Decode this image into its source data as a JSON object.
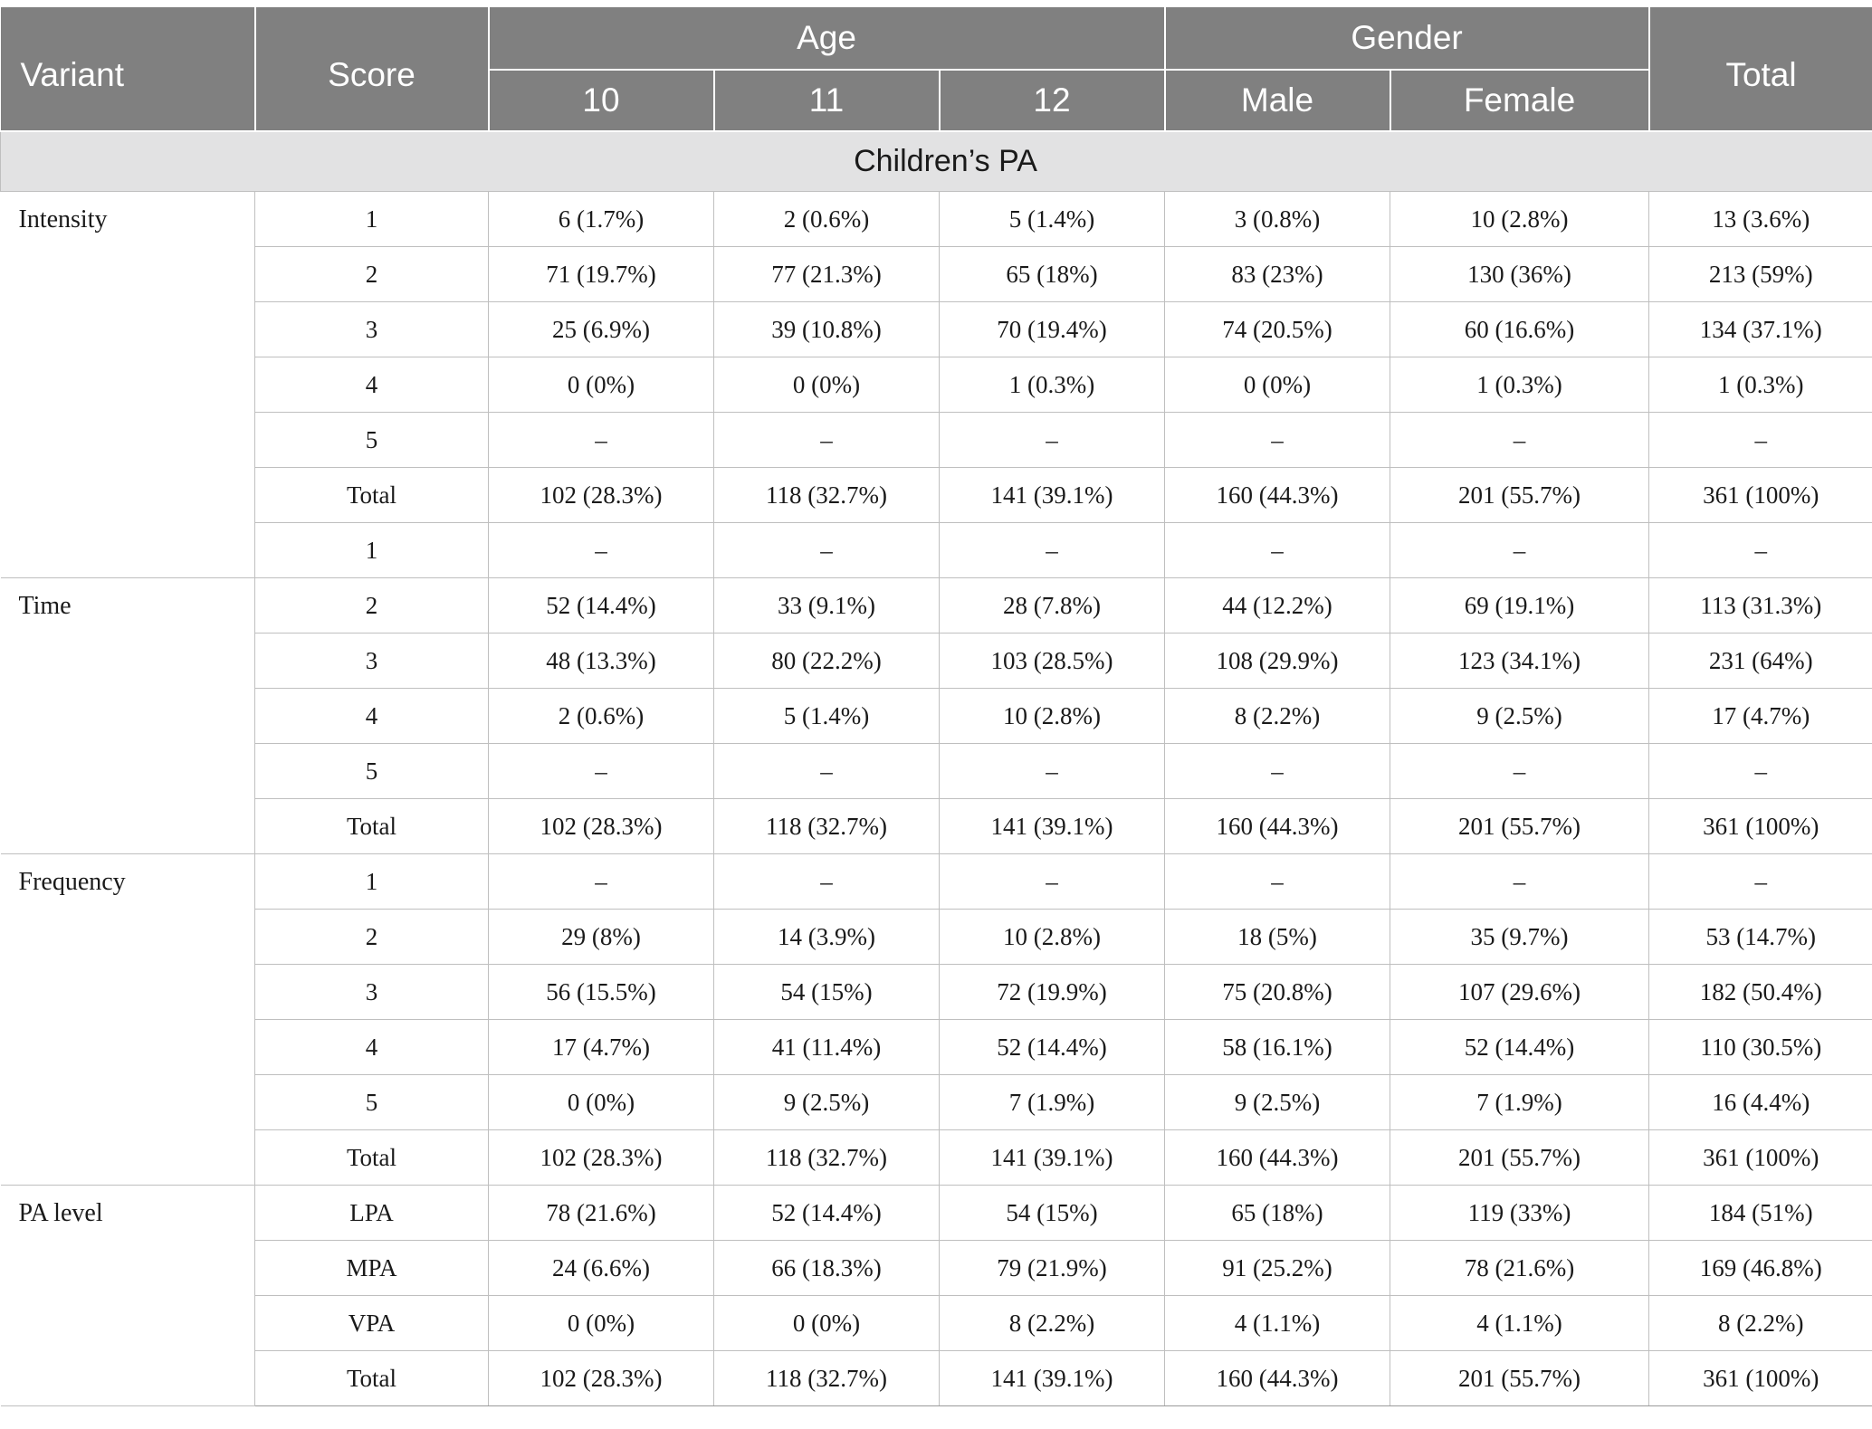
{
  "header": {
    "variant": "Variant",
    "score": "Score",
    "age": "Age",
    "gender": "Gender",
    "total": "Total",
    "age_10": "10",
    "age_11": "11",
    "age_12": "12",
    "male": "Male",
    "female": "Female"
  },
  "section_title": "Children’s PA",
  "intensity": {
    "label": "Intensity",
    "rows": [
      [
        "1",
        "6 (1.7%)",
        "2 (0.6%)",
        "5 (1.4%)",
        "3 (0.8%)",
        "10 (2.8%)",
        "13 (3.6%)"
      ],
      [
        "2",
        "71 (19.7%)",
        "77 (21.3%)",
        "65 (18%)",
        "83 (23%)",
        "130 (36%)",
        "213 (59%)"
      ],
      [
        "3",
        "25 (6.9%)",
        "39 (10.8%)",
        "70 (19.4%)",
        "74 (20.5%)",
        "60 (16.6%)",
        "134 (37.1%)"
      ],
      [
        "4",
        "0 (0%)",
        "0 (0%)",
        "1 (0.3%)",
        "0 (0%)",
        "1 (0.3%)",
        "1 (0.3%)"
      ],
      [
        "5",
        "–",
        "–",
        "–",
        "–",
        "–",
        "–"
      ],
      [
        "Total",
        "102 (28.3%)",
        "118 (32.7%)",
        "141 (39.1%)",
        "160 (44.3%)",
        "201 (55.7%)",
        "361 (100%)"
      ],
      [
        "1",
        "–",
        "–",
        "–",
        "–",
        "–",
        "–"
      ]
    ]
  },
  "time": {
    "label": "Time",
    "rows": [
      [
        "2",
        "52 (14.4%)",
        "33 (9.1%)",
        "28 (7.8%)",
        "44 (12.2%)",
        "69 (19.1%)",
        "113 (31.3%)"
      ],
      [
        "3",
        "48 (13.3%)",
        "80 (22.2%)",
        "103 (28.5%)",
        "108 (29.9%)",
        "123 (34.1%)",
        "231 (64%)"
      ],
      [
        "4",
        "2 (0.6%)",
        "5 (1.4%)",
        "10 (2.8%)",
        "8 (2.2%)",
        "9 (2.5%)",
        "17 (4.7%)"
      ],
      [
        "5",
        "–",
        "–",
        "–",
        "–",
        "–",
        "–"
      ],
      [
        "Total",
        "102 (28.3%)",
        "118 (32.7%)",
        "141 (39.1%)",
        "160 (44.3%)",
        "201 (55.7%)",
        "361 (100%)"
      ]
    ]
  },
  "frequency": {
    "label": "Frequency",
    "rows": [
      [
        "1",
        "–",
        "–",
        "–",
        "–",
        "–",
        "–"
      ],
      [
        "2",
        "29 (8%)",
        "14 (3.9%)",
        "10 (2.8%)",
        "18 (5%)",
        "35 (9.7%)",
        "53 (14.7%)"
      ],
      [
        "3",
        "56 (15.5%)",
        "54 (15%)",
        "72 (19.9%)",
        "75 (20.8%)",
        "107 (29.6%)",
        "182 (50.4%)"
      ],
      [
        "4",
        "17 (4.7%)",
        "41 (11.4%)",
        "52 (14.4%)",
        "58 (16.1%)",
        "52 (14.4%)",
        "110 (30.5%)"
      ],
      [
        "5",
        "0 (0%)",
        "9 (2.5%)",
        "7 (1.9%)",
        "9 (2.5%)",
        "7 (1.9%)",
        "16 (4.4%)"
      ],
      [
        "Total",
        "102 (28.3%)",
        "118 (32.7%)",
        "141 (39.1%)",
        "160 (44.3%)",
        "201 (55.7%)",
        "361 (100%)"
      ]
    ]
  },
  "pa_level": {
    "label": "PA level",
    "rows": [
      [
        "LPA",
        "78 (21.6%)",
        "52 (14.4%)",
        "54 (15%)",
        "65 (18%)",
        "119 (33%)",
        "184 (51%)"
      ],
      [
        "MPA",
        "24 (6.6%)",
        "66 (18.3%)",
        "79 (21.9%)",
        "91 (25.2%)",
        "78 (21.6%)",
        "169 (46.8%)"
      ],
      [
        "VPA",
        "0 (0%)",
        "0 (0%)",
        "8 (2.2%)",
        "4 (1.1%)",
        "4 (1.1%)",
        "8 (2.2%)"
      ],
      [
        "Total",
        "102 (28.3%)",
        "118 (32.7%)",
        "141 (39.1%)",
        "160 (44.3%)",
        "201 (55.7%)",
        "361 (100%)"
      ]
    ]
  }
}
